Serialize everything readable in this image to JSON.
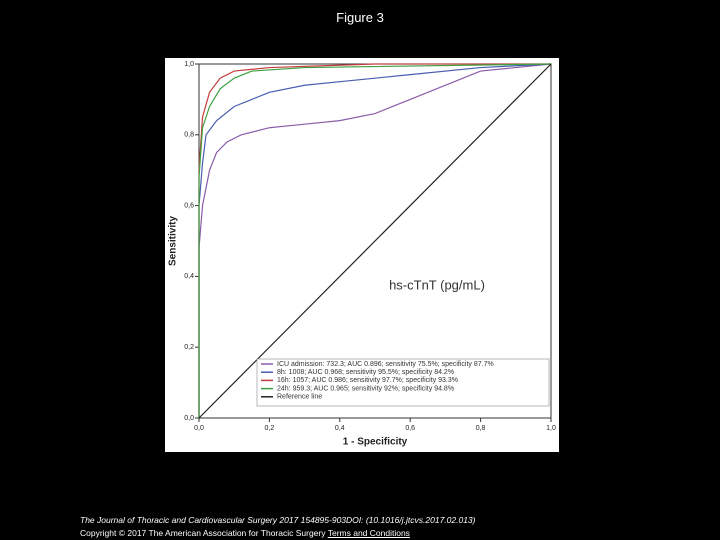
{
  "slide": {
    "title": "Figure 3"
  },
  "chart_data": {
    "type": "line",
    "xlabel": "1 - Specificity",
    "ylabel": "Sensitivity",
    "annotation": "hs-cTnT (pg/mL)",
    "xlim": [
      0,
      1
    ],
    "ylim": [
      0,
      1
    ],
    "xticks": [
      {
        "value": 0,
        "label": "0,0"
      },
      {
        "value": 0.2,
        "label": "0,2"
      },
      {
        "value": 0.4,
        "label": "0,4"
      },
      {
        "value": 0.6,
        "label": "0,6"
      },
      {
        "value": 0.8,
        "label": "0,8"
      },
      {
        "value": 1,
        "label": "1,0"
      }
    ],
    "yticks": [
      {
        "value": 0,
        "label": "0,0"
      },
      {
        "value": 0.2,
        "label": "0,2"
      },
      {
        "value": 0.4,
        "label": "0,4"
      },
      {
        "value": 0.6,
        "label": "0,6"
      },
      {
        "value": 0.8,
        "label": "0,8"
      },
      {
        "value": 1,
        "label": "1,0"
      }
    ],
    "legend": "lower right",
    "series": [
      {
        "name": "ICU admission: 732.3; AUC 0.896; sensitivity 75.5%; specificity 87.7%",
        "color": "#8a5ca8",
        "x": [
          0,
          0,
          0.01,
          0.02,
          0.03,
          0.05,
          0.08,
          0.12,
          0.2,
          0.3,
          0.4,
          0.5,
          0.55,
          0.6,
          0.8,
          1
        ],
        "values": [
          0,
          0.48,
          0.6,
          0.65,
          0.7,
          0.75,
          0.78,
          0.8,
          0.82,
          0.83,
          0.84,
          0.86,
          0.88,
          0.9,
          0.98,
          1
        ]
      },
      {
        "name": "8h: 1008; AUC 0.968; sensitivity 95.5%; specificity 84.2%",
        "color": "#4a5cb0",
        "x": [
          0,
          0,
          0.01,
          0.02,
          0.05,
          0.1,
          0.15,
          0.2,
          0.3,
          0.4,
          0.5,
          0.6,
          0.8,
          1
        ],
        "values": [
          0,
          0.6,
          0.72,
          0.8,
          0.84,
          0.88,
          0.9,
          0.92,
          0.94,
          0.95,
          0.96,
          0.97,
          0.99,
          1
        ]
      },
      {
        "name": "16h: 1057; AUC 0.986; sensitivity 97.7%; specificity 93.3%",
        "color": "#c43c3c",
        "x": [
          0,
          0,
          0.01,
          0.03,
          0.06,
          0.1,
          0.2,
          0.5,
          1
        ],
        "values": [
          0,
          0.7,
          0.85,
          0.92,
          0.96,
          0.98,
          0.99,
          1,
          1
        ]
      },
      {
        "name": "24h: 959.3; AUC 0.965; sensitivity 92%; specificity 94.8%",
        "color": "#3ca040",
        "x": [
          0,
          0,
          0.01,
          0.03,
          0.06,
          0.1,
          0.15,
          0.3,
          1
        ],
        "values": [
          0,
          0.68,
          0.82,
          0.88,
          0.93,
          0.96,
          0.98,
          0.99,
          1
        ]
      },
      {
        "name": "Reference line",
        "color": "#222222",
        "x": [
          0,
          1
        ],
        "values": [
          0,
          1
        ]
      }
    ]
  },
  "footer": {
    "citation": "The Journal of Thoracic and Cardiovascular Surgery 2017 154895-903DOI: (10.1016/j.jtcvs.2017.02.013)",
    "copyright": "Copyright © 2017 The American Association for Thoracic Surgery",
    "link": "Terms and Conditions"
  }
}
